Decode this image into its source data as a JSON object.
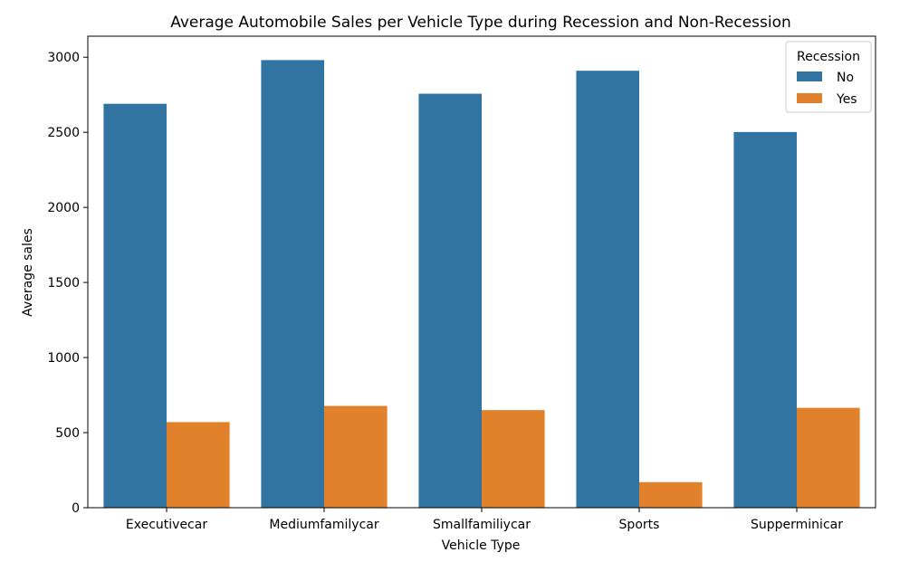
{
  "chart_data": {
    "type": "bar",
    "title": "Average Automobile Sales per Vehicle Type during Recession and Non-Recession",
    "xlabel": "Vehicle Type",
    "ylabel": "Average sales",
    "categories": [
      "Executivecar",
      "Mediumfamilycar",
      "Smallfamiliycar",
      "Sports",
      "Supperminicar"
    ],
    "series": [
      {
        "name": "No",
        "color": "#3274a1",
        "values": [
          2690,
          2981,
          2757,
          2910,
          2502
        ]
      },
      {
        "name": "Yes",
        "color": "#e1812c",
        "values": [
          570,
          678,
          650,
          170,
          665
        ]
      }
    ],
    "ylim": [
      0,
      3140
    ],
    "yticks": [
      0,
      500,
      1000,
      1500,
      2000,
      2500,
      3000
    ],
    "grid": false,
    "legend": {
      "title": "Recession",
      "placement": "top-right"
    }
  }
}
